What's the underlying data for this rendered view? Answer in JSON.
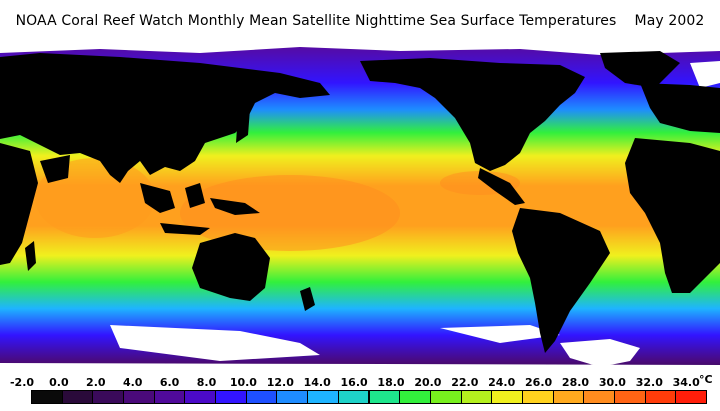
{
  "title": "NOAA Coral Reef Watch Monthly Mean Satellite Nighttime Sea Surface Temperatures    May 2002",
  "legend": {
    "ticks": [
      "-2.0",
      "0.0",
      "2.0",
      "4.0",
      "6.0",
      "8.0",
      "10.0",
      "12.0",
      "14.0",
      "16.0",
      "18.0",
      "20.0",
      "22.0",
      "24.0",
      "26.0",
      "28.0",
      "30.0",
      "32.0",
      "34.0"
    ],
    "unit": "°C",
    "colors": [
      "#0a0a0a",
      "#2a0a3a",
      "#3a0a5a",
      "#4a0a7a",
      "#500a9a",
      "#4b0ac8",
      "#3214ff",
      "#1e50ff",
      "#1e8cff",
      "#1eb4ff",
      "#1ed2c8",
      "#1ee68c",
      "#32f03c",
      "#78f01e",
      "#b4f01e",
      "#f0f01e",
      "#ffd21e",
      "#ffaa1e",
      "#ff8c1e",
      "#ff6414",
      "#ff3c0a",
      "#ff1e0a"
    ]
  },
  "map": {
    "land_color": "#000000",
    "ice_color": "#ffffff"
  }
}
